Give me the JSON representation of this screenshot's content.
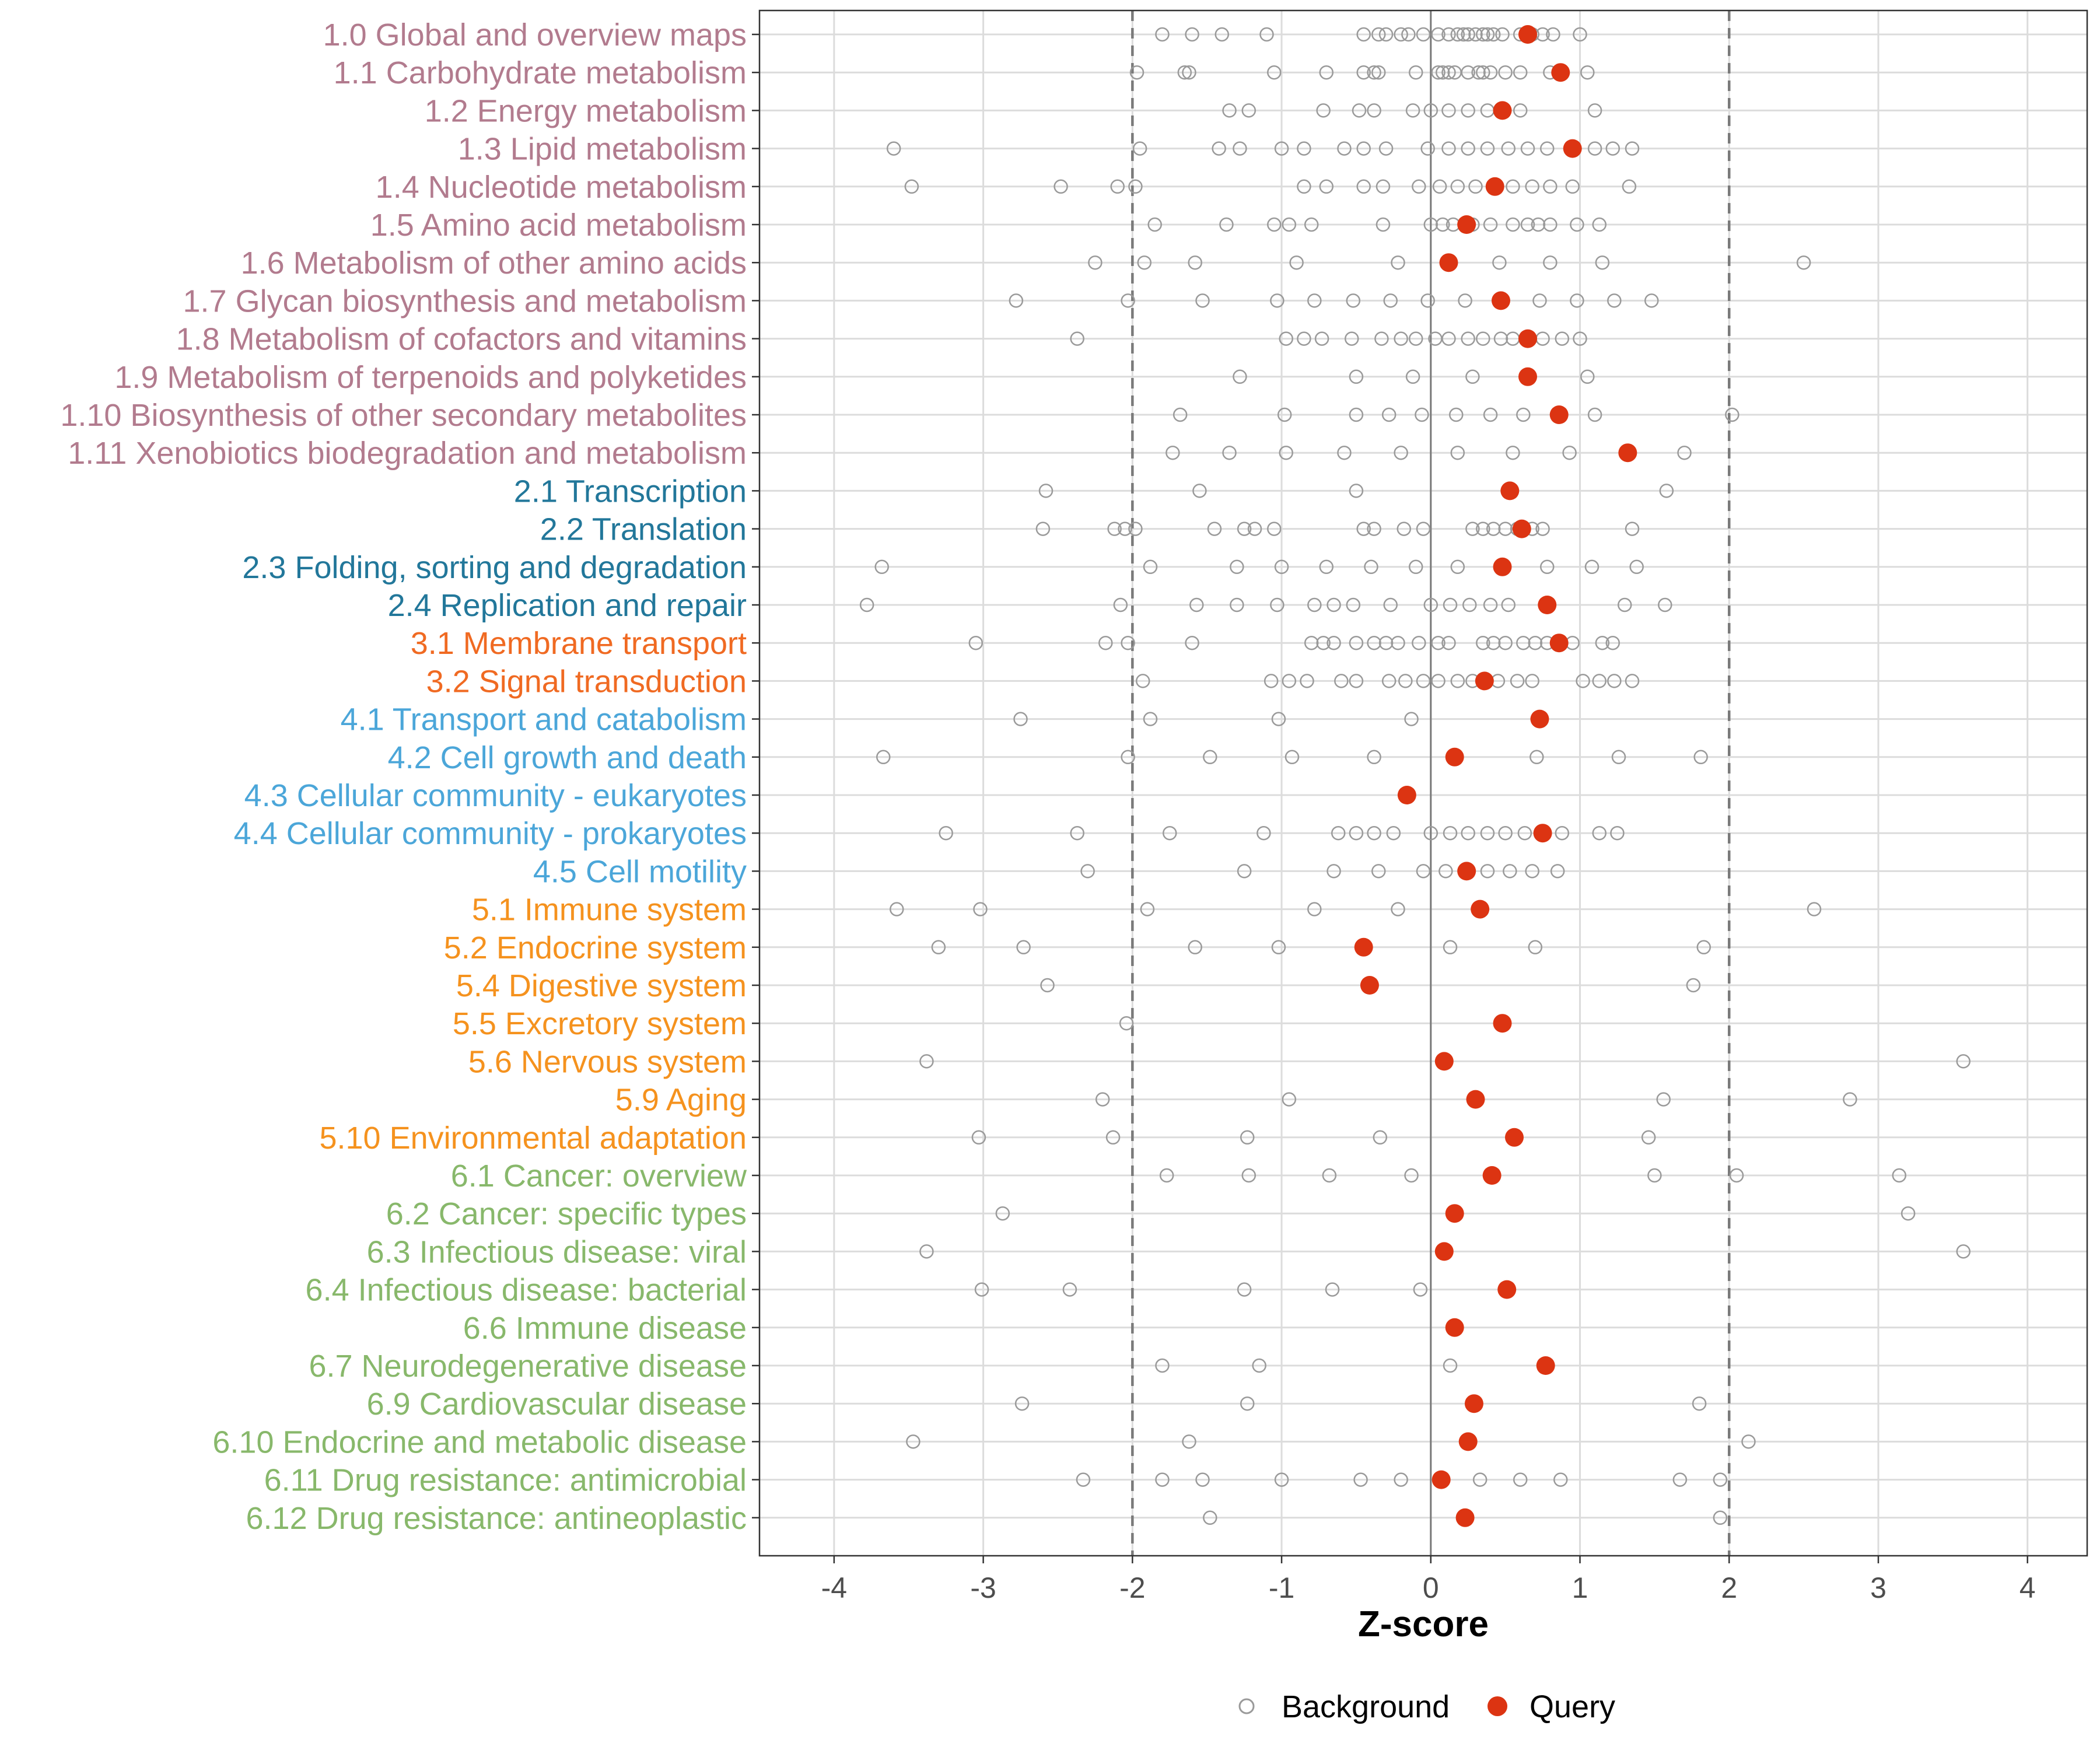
{
  "chart_data": {
    "type": "scatter",
    "title": "",
    "xlabel": "Z-score",
    "ylabel": "",
    "xlim": [
      -4.5,
      4.4
    ],
    "xticks": [
      -4,
      -3,
      -2,
      -1,
      0,
      1,
      2,
      3,
      4
    ],
    "xtick_labels": [
      "-4",
      "-3",
      "-2",
      "-1",
      "0",
      "1",
      "2",
      "3",
      "4"
    ],
    "threshold_lines": [
      -2,
      2
    ],
    "zero_line": 0,
    "grid": true,
    "legend": {
      "placement": "bottom-center",
      "entries": [
        {
          "name": "Background",
          "style": "open-circle"
        },
        {
          "name": "Query",
          "style": "filled-circle"
        }
      ]
    },
    "colors": {
      "query": "#dc3412",
      "background_marker": "#9a9a9a",
      "grid": "#dcdcdc",
      "threshold": "#7a7a7a",
      "zero": "#7a7a7a",
      "panel_border": "#333333",
      "group1": "#b27b8e",
      "group2": "#22779a",
      "group3": "#f06a22",
      "group4": "#4ba6d9",
      "group5": "#f5921e",
      "group6": "#88b86b"
    },
    "categories": [
      {
        "label": "1.0 Global and overview maps",
        "group": "group1",
        "query": 0.65,
        "background": [
          -1.8,
          -1.6,
          -1.4,
          -1.1,
          -0.45,
          -0.35,
          -0.3,
          -0.2,
          -0.15,
          -0.05,
          0.05,
          0.12,
          0.18,
          0.22,
          0.25,
          0.3,
          0.35,
          0.38,
          0.42,
          0.48,
          0.6,
          0.68,
          0.75,
          0.82,
          1.0
        ]
      },
      {
        "label": "1.1 Carbohydrate metabolism",
        "group": "group1",
        "query": 0.87,
        "background": [
          -1.97,
          -1.65,
          -1.62,
          -1.05,
          -0.7,
          -0.45,
          -0.38,
          -0.35,
          -0.1,
          0.05,
          0.08,
          0.12,
          0.16,
          0.25,
          0.32,
          0.35,
          0.4,
          0.5,
          0.6,
          0.8,
          1.05
        ]
      },
      {
        "label": "1.2 Energy metabolism",
        "group": "group1",
        "query": 0.48,
        "background": [
          -1.35,
          -1.22,
          -0.72,
          -0.48,
          -0.38,
          -0.12,
          0.0,
          0.12,
          0.25,
          0.38,
          0.6,
          1.1
        ]
      },
      {
        "label": "1.3 Lipid metabolism",
        "group": "group1",
        "query": 0.95,
        "background": [
          -3.6,
          -1.95,
          -1.42,
          -1.28,
          -1.0,
          -0.85,
          -0.58,
          -0.45,
          -0.3,
          -0.02,
          0.12,
          0.25,
          0.38,
          0.52,
          0.65,
          0.78,
          1.1,
          1.22,
          1.35
        ]
      },
      {
        "label": "1.4 Nucleotide metabolism",
        "group": "group1",
        "query": 0.43,
        "background": [
          -3.48,
          -2.48,
          -2.1,
          -1.98,
          -0.85,
          -0.7,
          -0.45,
          -0.32,
          -0.08,
          0.06,
          0.18,
          0.3,
          0.55,
          0.68,
          0.8,
          0.95,
          1.33
        ]
      },
      {
        "label": "1.5 Amino acid metabolism",
        "group": "group1",
        "query": 0.24,
        "background": [
          -1.85,
          -1.37,
          -1.05,
          -0.95,
          -0.8,
          -0.32,
          0.0,
          0.08,
          0.15,
          0.28,
          0.4,
          0.55,
          0.65,
          0.72,
          0.8,
          0.98,
          1.13
        ]
      },
      {
        "label": "1.6 Metabolism of other amino acids",
        "group": "group1",
        "query": 0.12,
        "background": [
          -2.25,
          -1.92,
          -1.58,
          -0.9,
          -0.22,
          0.46,
          0.8,
          1.15,
          2.5
        ]
      },
      {
        "label": "1.7 Glycan biosynthesis and metabolism",
        "group": "group1",
        "query": 0.47,
        "background": [
          -2.78,
          -2.03,
          -1.53,
          -1.03,
          -0.78,
          -0.52,
          -0.27,
          -0.02,
          0.23,
          0.73,
          0.98,
          1.23,
          1.48
        ]
      },
      {
        "label": "1.8 Metabolism of cofactors and vitamins",
        "group": "group1",
        "query": 0.65,
        "background": [
          -2.37,
          -0.97,
          -0.85,
          -0.73,
          -0.53,
          -0.33,
          -0.2,
          -0.1,
          0.03,
          0.12,
          0.25,
          0.35,
          0.47,
          0.55,
          0.75,
          0.88,
          1.0
        ]
      },
      {
        "label": "1.9 Metabolism of terpenoids and polyketides",
        "group": "group1",
        "query": 0.65,
        "background": [
          -1.28,
          -0.5,
          -0.12,
          0.28,
          1.05
        ]
      },
      {
        "label": "1.10 Biosynthesis of other secondary metabolites",
        "group": "group1",
        "query": 0.86,
        "background": [
          -1.68,
          -0.98,
          -0.5,
          -0.28,
          -0.06,
          0.17,
          0.4,
          0.62,
          1.1,
          2.02
        ]
      },
      {
        "label": "1.11 Xenobiotics biodegradation and metabolism",
        "group": "group1",
        "query": 1.32,
        "background": [
          -1.73,
          -1.35,
          -0.97,
          -0.58,
          -0.2,
          0.18,
          0.55,
          0.93,
          1.7
        ]
      },
      {
        "label": "2.1 Transcription",
        "group": "group2",
        "query": 0.53,
        "background": [
          -2.58,
          -1.55,
          -0.5,
          1.58
        ]
      },
      {
        "label": "2.2 Translation",
        "group": "group2",
        "query": 0.61,
        "background": [
          -2.6,
          -2.12,
          -2.05,
          -1.98,
          -1.45,
          -1.25,
          -1.18,
          -1.05,
          -0.45,
          -0.38,
          -0.18,
          -0.05,
          0.28,
          0.35,
          0.42,
          0.5,
          0.58,
          0.68,
          0.75,
          1.35
        ]
      },
      {
        "label": "2.3 Folding, sorting and degradation",
        "group": "group2",
        "query": 0.48,
        "background": [
          -3.68,
          -1.88,
          -1.3,
          -1.0,
          -0.7,
          -0.4,
          -0.1,
          0.18,
          0.78,
          1.08,
          1.38
        ]
      },
      {
        "label": "2.4 Replication and repair",
        "group": "group2",
        "query": 0.78,
        "background": [
          -3.78,
          -2.08,
          -1.57,
          -1.3,
          -1.03,
          -0.78,
          -0.65,
          -0.52,
          -0.27,
          0.0,
          0.13,
          0.26,
          0.4,
          0.52,
          1.3,
          1.57
        ]
      },
      {
        "label": "3.1 Membrane transport",
        "group": "group3",
        "query": 0.86,
        "background": [
          -3.05,
          -2.18,
          -2.03,
          -1.6,
          -0.8,
          -0.72,
          -0.65,
          -0.5,
          -0.38,
          -0.3,
          -0.22,
          -0.08,
          0.05,
          0.12,
          0.35,
          0.42,
          0.5,
          0.62,
          0.7,
          0.78,
          0.85,
          0.95,
          1.15,
          1.22
        ]
      },
      {
        "label": "3.2 Signal transduction",
        "group": "group3",
        "query": 0.36,
        "background": [
          -1.93,
          -1.07,
          -0.95,
          -0.83,
          -0.6,
          -0.5,
          -0.28,
          -0.17,
          -0.05,
          0.05,
          0.18,
          0.28,
          0.45,
          0.58,
          0.68,
          1.02,
          1.13,
          1.23,
          1.35
        ]
      },
      {
        "label": "4.1 Transport and catabolism",
        "group": "group4",
        "query": 0.73,
        "background": [
          -2.75,
          -1.88,
          -1.02,
          -0.13
        ]
      },
      {
        "label": "4.2 Cell growth and death",
        "group": "group4",
        "query": 0.16,
        "background": [
          -3.67,
          -2.03,
          -1.48,
          -0.93,
          -0.38,
          0.71,
          1.26,
          1.81
        ]
      },
      {
        "label": "4.3 Cellular community - eukaryotes",
        "group": "group4",
        "query": -0.16,
        "background": []
      },
      {
        "label": "4.4 Cellular community - prokaryotes",
        "group": "group4",
        "query": 0.75,
        "background": [
          -3.25,
          -2.37,
          -1.75,
          -1.12,
          -0.62,
          -0.5,
          -0.38,
          -0.25,
          0.0,
          0.13,
          0.25,
          0.38,
          0.5,
          0.63,
          0.88,
          1.13,
          1.25
        ]
      },
      {
        "label": "4.5 Cell motility",
        "group": "group4",
        "query": 0.24,
        "background": [
          -2.3,
          -1.25,
          -0.65,
          -0.35,
          -0.05,
          0.1,
          0.38,
          0.53,
          0.68,
          0.85
        ]
      },
      {
        "label": "5.1 Immune system",
        "group": "group5",
        "query": 0.33,
        "background": [
          -3.58,
          -3.02,
          -1.9,
          -0.78,
          -0.22,
          2.57
        ]
      },
      {
        "label": "5.2 Endocrine system",
        "group": "group5",
        "query": -0.45,
        "background": [
          -3.3,
          -2.73,
          -1.58,
          -1.02,
          0.13,
          0.7,
          1.83
        ]
      },
      {
        "label": "5.4 Digestive system",
        "group": "group5",
        "query": -0.41,
        "background": [
          -2.57,
          1.76
        ]
      },
      {
        "label": "5.5 Excretory system",
        "group": "group5",
        "query": 0.48,
        "background": [
          -2.04
        ]
      },
      {
        "label": "5.6 Nervous system",
        "group": "group5",
        "query": 0.09,
        "background": [
          -3.38,
          3.57
        ]
      },
      {
        "label": "5.9 Aging",
        "group": "group5",
        "query": 0.3,
        "background": [
          -2.2,
          -0.95,
          1.56,
          2.81
        ]
      },
      {
        "label": "5.10 Environmental adaptation",
        "group": "group5",
        "query": 0.56,
        "background": [
          -3.03,
          -2.13,
          -1.23,
          -0.34,
          1.46
        ]
      },
      {
        "label": "6.1 Cancer: overview",
        "group": "group6",
        "query": 0.41,
        "background": [
          -1.77,
          -1.22,
          -0.68,
          -0.13,
          1.5,
          2.05,
          3.14
        ]
      },
      {
        "label": "6.2 Cancer: specific types",
        "group": "group6",
        "query": 0.16,
        "background": [
          -2.87,
          3.2
        ]
      },
      {
        "label": "6.3 Infectious disease: viral",
        "group": "group6",
        "query": 0.09,
        "background": [
          -3.38,
          3.57
        ]
      },
      {
        "label": "6.4 Infectious disease: bacterial",
        "group": "group6",
        "query": 0.51,
        "background": [
          -3.01,
          -2.42,
          -1.25,
          -0.66,
          -0.07
        ]
      },
      {
        "label": "6.6 Immune disease",
        "group": "group6",
        "query": 0.16,
        "background": []
      },
      {
        "label": "6.7 Neurodegenerative disease",
        "group": "group6",
        "query": 0.77,
        "background": [
          -1.8,
          -1.15,
          0.13
        ]
      },
      {
        "label": "6.9 Cardiovascular disease",
        "group": "group6",
        "query": 0.29,
        "background": [
          -2.74,
          -1.23,
          1.8
        ]
      },
      {
        "label": "6.10 Endocrine and metabolic disease",
        "group": "group6",
        "query": 0.25,
        "background": [
          -3.47,
          -1.62,
          2.13
        ]
      },
      {
        "label": "6.11 Drug resistance: antimicrobial",
        "group": "group6",
        "query": 0.07,
        "background": [
          -2.33,
          -1.8,
          -1.53,
          -1.0,
          -0.47,
          -0.2,
          0.33,
          0.6,
          0.87,
          1.67,
          1.94
        ]
      },
      {
        "label": "6.12 Drug resistance: antineoplastic",
        "group": "group6",
        "query": 0.23,
        "background": [
          -1.48,
          1.94
        ]
      }
    ]
  }
}
